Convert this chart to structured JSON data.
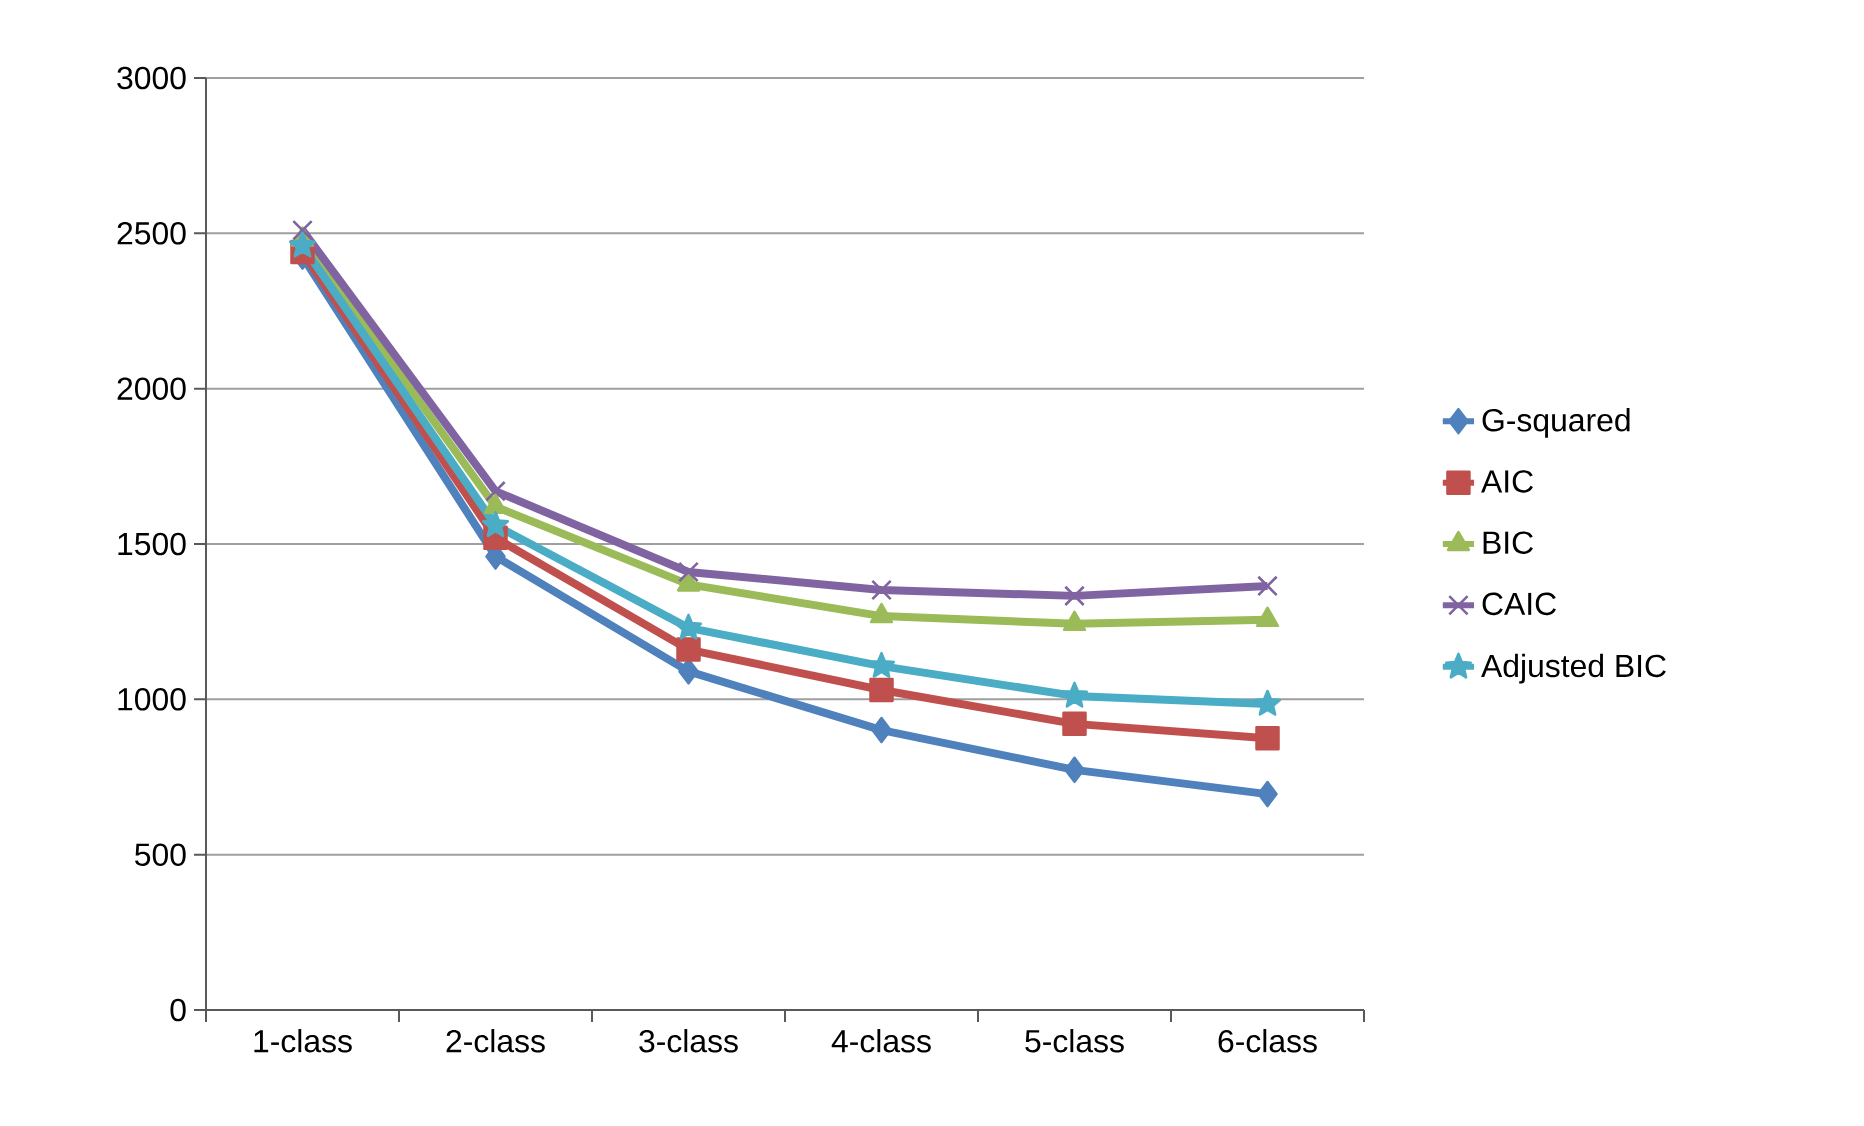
{
  "chart_data": {
    "type": "line",
    "categories": [
      "1-class",
      "2-class",
      "3-class",
      "4-class",
      "5-class",
      "6-class"
    ],
    "ylim": [
      0,
      3000
    ],
    "yticks": [
      0,
      500,
      1000,
      1500,
      2000,
      2500,
      3000
    ],
    "grid": "y",
    "legend": "right",
    "series": [
      {
        "name": "G-squared",
        "color": "#4f81bd",
        "marker": "diamond",
        "values": [
          2425,
          1460,
          1090,
          901,
          773,
          695
        ]
      },
      {
        "name": "AIC",
        "color": "#c0504d",
        "marker": "square",
        "values": [
          2440,
          1520,
          1160,
          1030,
          921,
          875
        ]
      },
      {
        "name": "BIC",
        "color": "#9bbb59",
        "marker": "triangle",
        "values": [
          2480,
          1620,
          1370,
          1268,
          1243,
          1256
        ]
      },
      {
        "name": "CAIC",
        "color": "#8064a2",
        "marker": "cross",
        "values": [
          2510,
          1670,
          1410,
          1352,
          1333,
          1365
        ]
      },
      {
        "name": "Adjusted BIC",
        "color": "#4bacc6",
        "marker": "star",
        "values": [
          2460,
          1560,
          1230,
          1107,
          1011,
          985
        ]
      }
    ]
  }
}
